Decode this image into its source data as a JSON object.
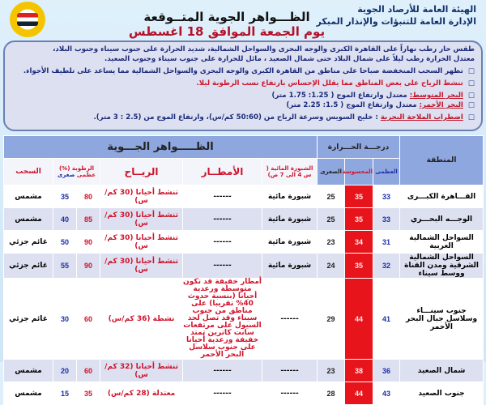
{
  "header": {
    "org_line1": "الهيئة العامة للأرصاد الجوية",
    "org_line2": "الإدارة العامة للتنبؤات والإنذار المبكر",
    "title": "الظـــواهر الجوية المتــوقعة",
    "date": "يوم الجمعة الموافق 18 اغسطس 2023"
  },
  "summary": {
    "line1": "طقس حار رطب نهاراً على القاهرة الكبرى والوجه البحرى والسواحل الشمالية، شديد الحرارة على جنوب سيناء وجنوب البلاد،",
    "line2": "معتدل الحرارة رطب ليلاً على شمال البلاد حتى شمال الصعيد ، مائل للحرارة على جنوب سيناء وجنوب الصعيد.",
    "bullet1": "تظهر السحب المنخفضة صباحا على مناطق من القاهرة الكبرى والوجه البحرى والسواحل الشمالية مما يساعد على تلطيف الأجواء.",
    "bullet2": "تنشط الرياح على بعض المناطق مما يقلل الإحساس بارتفاع نسب الرطوبة ليلا.",
    "med_label": "البحر المتوسط:",
    "med_text": "معتدل وارتفاع الموج ( 1.25: 1.75 متر)",
    "red_label": "البحر الأحمر:",
    "red_text": "معتدل وارتفاع الموج ( 1.5: 2.25 متر)",
    "bullet5_label": "اضطراب الملاحة البحرية",
    "bullet5_text": ": خليج السويس وسرعة الرياح من (50:60 كم/س)، وارتفاع الموج من (2.5 : 3 متر)."
  },
  "table": {
    "h_region": "المنطقة",
    "h_temp": "درجـــة الحـــرارة",
    "h_max": "العظمى",
    "h_felt": "المحسوسة",
    "h_min": "الصغرى",
    "h_phen": "الظـــــواهر الجـــوية",
    "h_fog": "الشبورة المائية ( س 4 الى 7 ص)",
    "h_rain": "الأمطــار",
    "h_wind": "الريــاح",
    "h_hum": "الرطوبة (%)",
    "h_hmax": "عظمى",
    "h_hmin": "صغرى",
    "h_cloud": "السحب",
    "rows": [
      {
        "region": "القـــاهرة الكبـــرى",
        "max": "33",
        "felt": "35",
        "min": "25",
        "fog": "شبورة مائية",
        "rain": "------",
        "wind": "تنشط أحيانا (30 كم/س)",
        "hmax": "80",
        "hmin": "35",
        "cloud": "مشمس"
      },
      {
        "region": "الوجـــه البحـــري",
        "max": "33",
        "felt": "35",
        "min": "25",
        "fog": "شبورة مائية",
        "rain": "------",
        "wind": "تنشط أحيانا (30 كم/س)",
        "hmax": "85",
        "hmin": "40",
        "cloud": "مشمس"
      },
      {
        "region": "السواحل الشمالية الغربية",
        "max": "31",
        "felt": "34",
        "min": "23",
        "fog": "شبورة مائية",
        "rain": "------",
        "wind": "تنشط أحيانا (30 كم/س)",
        "hmax": "90",
        "hmin": "50",
        "cloud": "غائم جزئي"
      },
      {
        "region": "السواحل الشمالية الشرقية ومدن القناة ووسط سيناء",
        "max": "32",
        "felt": "35",
        "min": "24",
        "fog": "شبورة مائية",
        "rain": "------",
        "wind": "تنشط أحيانا (30 كم/س)",
        "hmax": "90",
        "hmin": "55",
        "cloud": "غائم جزئي"
      },
      {
        "region": "جنوب سينـــاء وسلاسل جبال البحر الأحمر",
        "max": "41",
        "felt": "44",
        "min": "29",
        "fog": "------",
        "rain": "أمطار خفيفة قد تكون متوسطة ورعدية أحيانا (بنسبة حدوث 40% تقريبا) على مناطق من جنوب سيناء وقد تصل لحد السيول على مرتفعات سانت كاترين تمتد خفيفة ورعدية أحيانا على جنوب سلاسل البحر الأحمر",
        "wind": "نشطة (36 كم/س)",
        "hmax": "60",
        "hmin": "30",
        "cloud": "غائم جزئي"
      },
      {
        "region": "شمال الصعيد",
        "max": "36",
        "felt": "38",
        "min": "23",
        "fog": "------",
        "rain": "------",
        "wind": "تنشط أحيانا (32 كم/س)",
        "hmax": "60",
        "hmin": "20",
        "cloud": "مشمس"
      },
      {
        "region": "جنوب الصعيد",
        "max": "43",
        "felt": "44",
        "min": "28",
        "fog": "------",
        "rain": "------",
        "wind": "معتدلة (28 كم/س)",
        "hmax": "35",
        "hmin": "15",
        "cloud": "مشمس"
      }
    ]
  }
}
